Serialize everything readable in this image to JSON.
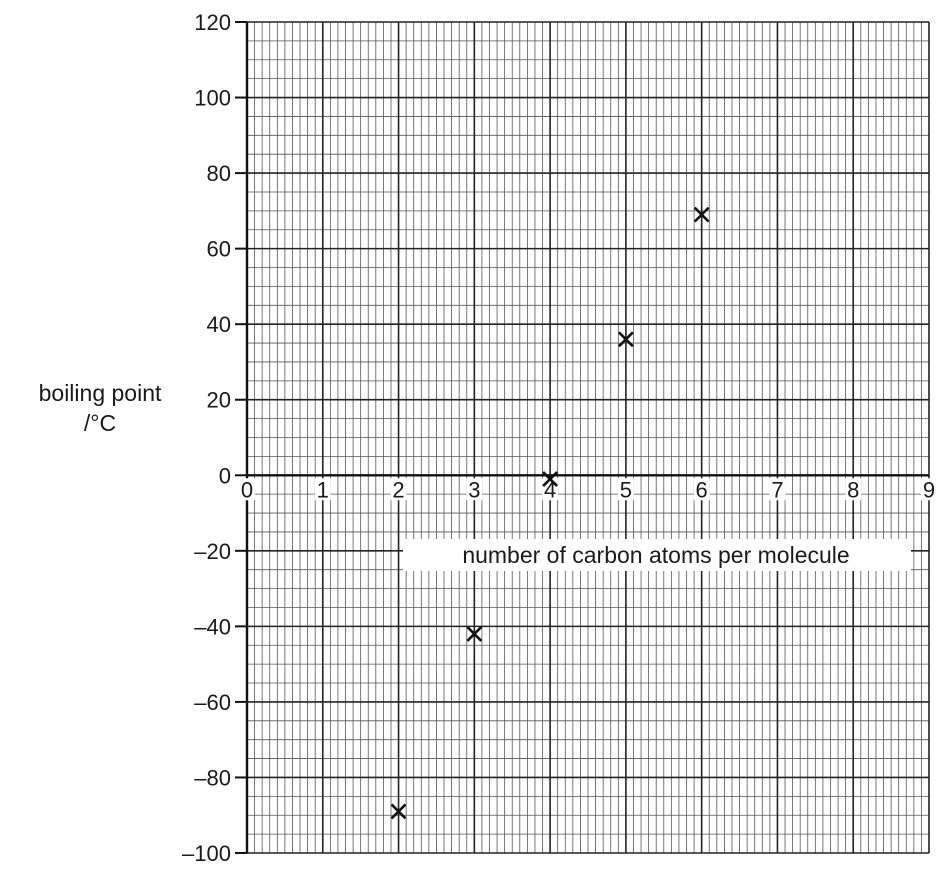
{
  "chart_data": {
    "type": "scatter",
    "xlabel": "number of carbon atoms per molecule",
    "ylabel_line1": "boiling point",
    "ylabel_line2": "/°C",
    "xlim": [
      0,
      9
    ],
    "ylim": [
      -100,
      120
    ],
    "x_ticks": [
      "0",
      "1",
      "2",
      "3",
      "4",
      "5",
      "6",
      "7",
      "8",
      "9"
    ],
    "y_ticks": [
      "120",
      "100",
      "80",
      "60",
      "40",
      "20",
      "0",
      "–20",
      "–40",
      "–60",
      "–80",
      "–100"
    ],
    "grid": true,
    "marker": "x",
    "points": [
      {
        "x": 2,
        "y": -89
      },
      {
        "x": 3,
        "y": -42
      },
      {
        "x": 4,
        "y": -1
      },
      {
        "x": 5,
        "y": 36
      },
      {
        "x": 6,
        "y": 69
      }
    ]
  }
}
